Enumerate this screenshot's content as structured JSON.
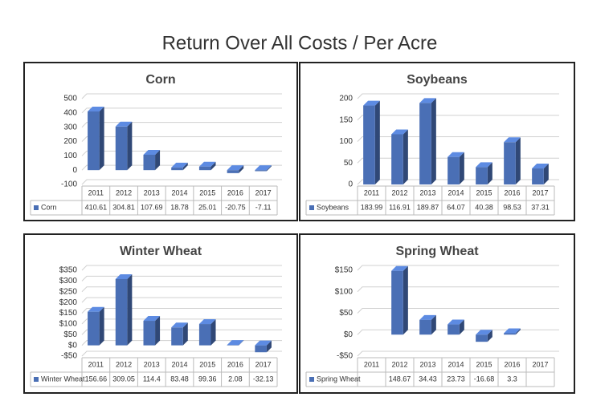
{
  "title": "Return Over All Costs / Per Acre",
  "chart_data": [
    {
      "type": "bar",
      "title": "Corn",
      "categories": [
        "2011",
        "2012",
        "2013",
        "2014",
        "2015",
        "2016",
        "2017"
      ],
      "series": [
        {
          "name": "Corn",
          "color": "#4a6fb5",
          "values": [
            410.61,
            304.81,
            107.69,
            18.78,
            25.01,
            -20.75,
            -7.11
          ]
        }
      ],
      "ylim": [
        -100,
        500
      ],
      "yticks": [
        -100,
        0,
        100,
        200,
        300,
        400,
        500
      ],
      "grid": true
    },
    {
      "type": "bar",
      "title": "Soybeans",
      "categories": [
        "2011",
        "2012",
        "2013",
        "2014",
        "2015",
        "2016",
        "2017"
      ],
      "series": [
        {
          "name": "Soybeans",
          "color": "#4a6fb5",
          "values": [
            183.99,
            116.91,
            189.87,
            64.07,
            40.38,
            98.53,
            37.31
          ]
        }
      ],
      "ylim": [
        0,
        200
      ],
      "yticks": [
        0,
        50,
        100,
        150,
        200
      ],
      "grid": true
    },
    {
      "type": "bar",
      "title": "Winter Wheat",
      "categories": [
        "2011",
        "2012",
        "2013",
        "2014",
        "2015",
        "2016",
        "2017"
      ],
      "series": [
        {
          "name": "Winter Wheat",
          "color": "#4a6fb5",
          "values": [
            156.66,
            309.05,
            114.4,
            83.48,
            99.36,
            2.08,
            -32.13
          ]
        }
      ],
      "ylim": [
        -50,
        350
      ],
      "yticks": [
        {
          "value": -50,
          "label": "-$50"
        },
        {
          "value": 0,
          "label": "$0"
        },
        {
          "value": 50,
          "label": "$50"
        },
        {
          "value": 100,
          "label": "$100"
        },
        {
          "value": 150,
          "label": "$150"
        },
        {
          "value": 200,
          "label": "$200"
        },
        {
          "value": 250,
          "label": "$250"
        },
        {
          "value": 300,
          "label": "$300"
        },
        {
          "value": 350,
          "label": "$350"
        }
      ],
      "grid": true
    },
    {
      "type": "bar",
      "title": "Spring Wheat",
      "categories": [
        "2011",
        "2012",
        "2013",
        "2014",
        "2015",
        "2016",
        "2017"
      ],
      "series": [
        {
          "name": "Spring Wheat",
          "color": "#4a6fb5",
          "values": [
            null,
            148.67,
            34.43,
            23.73,
            -16.68,
            3.3,
            null
          ]
        }
      ],
      "ylim": [
        -50,
        150
      ],
      "yticks": [
        {
          "value": -50,
          "label": "-$50"
        },
        {
          "value": 0,
          "label": "$0"
        },
        {
          "value": 50,
          "label": "$50"
        },
        {
          "value": 100,
          "label": "$100"
        },
        {
          "value": 150,
          "label": "$150"
        }
      ],
      "grid": true
    }
  ]
}
